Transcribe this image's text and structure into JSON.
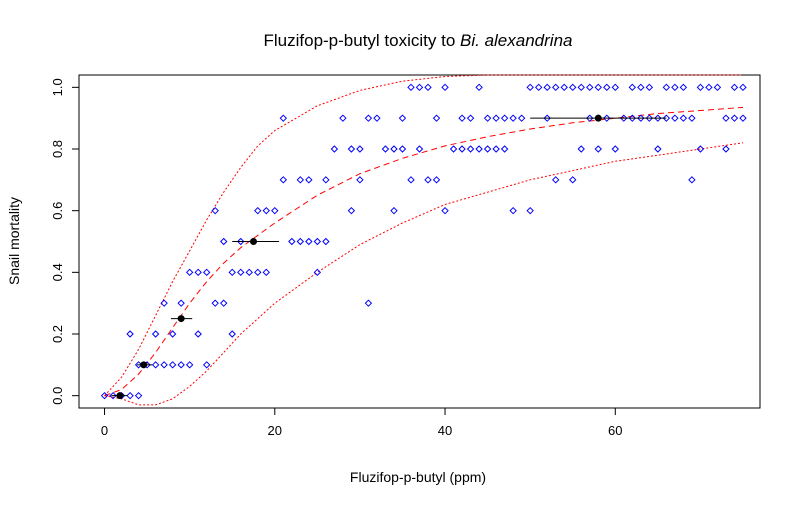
{
  "chart_data": {
    "type": "scatter",
    "title_prefix": "Fluzifop-p-butyl toxicity to ",
    "title_italic": "Bi. alexandrina",
    "xlabel": "Fluzifop-p-butyl (ppm)",
    "ylabel": "Snail mortality",
    "xlim": [
      -3,
      77
    ],
    "ylim": [
      -0.04,
      1.04
    ],
    "x_ticks": [
      0,
      20,
      40,
      60
    ],
    "y_ticks": [
      0.0,
      0.2,
      0.4,
      0.6,
      0.8,
      1.0
    ],
    "x_tick_labels": [
      "0",
      "20",
      "40",
      "60"
    ],
    "y_tick_labels": [
      "0.0",
      "0.2",
      "0.4",
      "0.6",
      "0.8",
      "1.0"
    ],
    "grid": false,
    "colors": {
      "points": "#0000ff",
      "curves": "#ff0000",
      "estimates": "#000000"
    },
    "points": [
      [
        0,
        0
      ],
      [
        1,
        0
      ],
      [
        2,
        0
      ],
      [
        3,
        0
      ],
      [
        4,
        0
      ],
      [
        3,
        0.2
      ],
      [
        4,
        0.1
      ],
      [
        5,
        0.1
      ],
      [
        6,
        0.1
      ],
      [
        6,
        0.2
      ],
      [
        7,
        0.3
      ],
      [
        7,
        0.1
      ],
      [
        8,
        0.1
      ],
      [
        8,
        0.2
      ],
      [
        9,
        0.1
      ],
      [
        9,
        0.3
      ],
      [
        10,
        0.1
      ],
      [
        10,
        0.4
      ],
      [
        11,
        0.2
      ],
      [
        11,
        0.4
      ],
      [
        12,
        0.1
      ],
      [
        12,
        0.4
      ],
      [
        13,
        0.3
      ],
      [
        13,
        0.6
      ],
      [
        14,
        0.3
      ],
      [
        14,
        0.5
      ],
      [
        15,
        0.2
      ],
      [
        15,
        0.4
      ],
      [
        16,
        0.4
      ],
      [
        16,
        0.5
      ],
      [
        17,
        0.4
      ],
      [
        18,
        0.4
      ],
      [
        18,
        0.6
      ],
      [
        19,
        0.4
      ],
      [
        19,
        0.6
      ],
      [
        20,
        0.6
      ],
      [
        21,
        0.7
      ],
      [
        21,
        0.9
      ],
      [
        22,
        0.5
      ],
      [
        23,
        0.5
      ],
      [
        23,
        0.7
      ],
      [
        24,
        0.5
      ],
      [
        24,
        0.7
      ],
      [
        25,
        0.4
      ],
      [
        25,
        0.5
      ],
      [
        26,
        0.5
      ],
      [
        26,
        0.7
      ],
      [
        27,
        0.8
      ],
      [
        28,
        0.9
      ],
      [
        29,
        0.6
      ],
      [
        29,
        0.8
      ],
      [
        30,
        0.7
      ],
      [
        30,
        0.8
      ],
      [
        31,
        0.3
      ],
      [
        31,
        0.9
      ],
      [
        32,
        0.9
      ],
      [
        33,
        0.8
      ],
      [
        34,
        0.6
      ],
      [
        34,
        0.8
      ],
      [
        35,
        0.8
      ],
      [
        35,
        0.9
      ],
      [
        36,
        0.7
      ],
      [
        36,
        1.0
      ],
      [
        37,
        0.8
      ],
      [
        37,
        1.0
      ],
      [
        38,
        0.7
      ],
      [
        38,
        1.0
      ],
      [
        39,
        0.7
      ],
      [
        39,
        0.9
      ],
      [
        40,
        0.6
      ],
      [
        40,
        1.0
      ],
      [
        41,
        0.8
      ],
      [
        42,
        0.8
      ],
      [
        42,
        0.9
      ],
      [
        43,
        0.8
      ],
      [
        43,
        0.9
      ],
      [
        44,
        0.8
      ],
      [
        44,
        1.0
      ],
      [
        45,
        0.8
      ],
      [
        45,
        0.9
      ],
      [
        46,
        0.8
      ],
      [
        46,
        0.9
      ],
      [
        47,
        0.8
      ],
      [
        47,
        0.9
      ],
      [
        48,
        0.6
      ],
      [
        48,
        0.9
      ],
      [
        49,
        0.9
      ],
      [
        50,
        0.6
      ],
      [
        50,
        1.0
      ],
      [
        51,
        1.0
      ],
      [
        52,
        0.9
      ],
      [
        52,
        1.0
      ],
      [
        53,
        0.7
      ],
      [
        53,
        1.0
      ],
      [
        54,
        1.0
      ],
      [
        55,
        0.7
      ],
      [
        55,
        1.0
      ],
      [
        56,
        0.8
      ],
      [
        56,
        1.0
      ],
      [
        57,
        0.9
      ],
      [
        57,
        1.0
      ],
      [
        58,
        0.8
      ],
      [
        58,
        1.0
      ],
      [
        59,
        0.9
      ],
      [
        59,
        1.0
      ],
      [
        60,
        0.8
      ],
      [
        60,
        1.0
      ],
      [
        61,
        0.9
      ],
      [
        62,
        0.9
      ],
      [
        62,
        1.0
      ],
      [
        63,
        0.9
      ],
      [
        63,
        1.0
      ],
      [
        64,
        0.9
      ],
      [
        64,
        1.0
      ],
      [
        65,
        0.8
      ],
      [
        65,
        0.9
      ],
      [
        66,
        0.9
      ],
      [
        66,
        1.0
      ],
      [
        67,
        0.9
      ],
      [
        67,
        1.0
      ],
      [
        68,
        0.9
      ],
      [
        68,
        1.0
      ],
      [
        69,
        0.7
      ],
      [
        69,
        0.9
      ],
      [
        70,
        0.8
      ],
      [
        70,
        1.0
      ],
      [
        71,
        1.0
      ],
      [
        72,
        1.0
      ],
      [
        73,
        0.8
      ],
      [
        73,
        0.9
      ],
      [
        74,
        0.9
      ],
      [
        74,
        1.0
      ],
      [
        75,
        0.9
      ],
      [
        75,
        1.0
      ]
    ],
    "estimates": [
      {
        "y": 0.0,
        "x": 1.8,
        "xmin": 0.8,
        "xmax": 2.7
      },
      {
        "y": 0.1,
        "x": 4.6,
        "xmin": 3.8,
        "xmax": 5.6
      },
      {
        "y": 0.25,
        "x": 9.0,
        "xmin": 7.8,
        "xmax": 10.3
      },
      {
        "y": 0.5,
        "x": 17.5,
        "xmin": 15.0,
        "xmax": 20.5
      },
      {
        "y": 0.9,
        "x": 58.0,
        "xmin": 50.0,
        "xmax": 66.0
      }
    ],
    "fit": {
      "x": [
        0,
        2,
        4,
        6,
        8,
        10,
        12,
        14,
        16,
        18,
        20,
        25,
        30,
        35,
        40,
        45,
        50,
        55,
        60,
        65,
        70,
        75
      ],
      "mid": [
        0,
        0.02,
        0.07,
        0.14,
        0.22,
        0.3,
        0.37,
        0.43,
        0.48,
        0.52,
        0.56,
        0.65,
        0.72,
        0.77,
        0.81,
        0.84,
        0.865,
        0.885,
        0.9,
        0.915,
        0.925,
        0.935
      ],
      "upper": [
        0,
        0.06,
        0.15,
        0.26,
        0.37,
        0.47,
        0.57,
        0.66,
        0.74,
        0.81,
        0.86,
        0.94,
        0.99,
        1.02,
        1.035,
        1.04,
        1.04,
        1.04,
        1.04,
        1.04,
        1.04,
        1.04
      ],
      "lower": [
        0,
        -0.01,
        -0.03,
        -0.03,
        -0.01,
        0.03,
        0.08,
        0.14,
        0.2,
        0.25,
        0.3,
        0.4,
        0.49,
        0.56,
        0.62,
        0.66,
        0.7,
        0.73,
        0.76,
        0.78,
        0.8,
        0.82
      ]
    }
  }
}
